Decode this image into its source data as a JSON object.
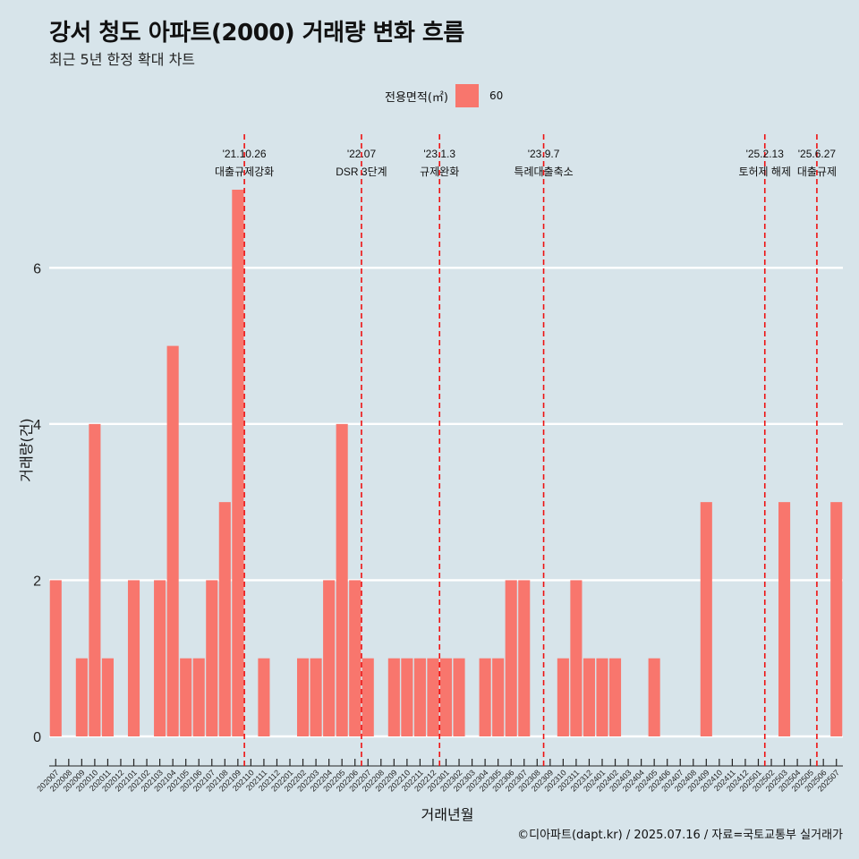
{
  "title": "강서 청도 아파트(2000) 거래량 변화 흐름",
  "subtitle": "최근 5년 한정 확대 차트",
  "legend": {
    "title": "전용면적(㎡)",
    "entry": "60",
    "color": "#f8766d"
  },
  "caption": "©디아파트(dapt.kr) / 2025.07.16 / 자료=국토교통부 실거래가",
  "chart_data": {
    "type": "bar",
    "xlabel": "거래년월",
    "ylabel": "거래량(건)",
    "ylim": [
      0,
      7
    ],
    "yticks": [
      0,
      2,
      4,
      6
    ],
    "bar_color": "#f8766d",
    "categories": [
      "202007",
      "202008",
      "202009",
      "202010",
      "202011",
      "202012",
      "202101",
      "202102",
      "202103",
      "202104",
      "202105",
      "202106",
      "202107",
      "202108",
      "202109",
      "202110",
      "202111",
      "202112",
      "202201",
      "202202",
      "202203",
      "202204",
      "202205",
      "202206",
      "202207",
      "202208",
      "202209",
      "202210",
      "202211",
      "202212",
      "202301",
      "202302",
      "202303",
      "202304",
      "202305",
      "202306",
      "202307",
      "202308",
      "202309",
      "202310",
      "202311",
      "202312",
      "202401",
      "202402",
      "202403",
      "202404",
      "202405",
      "202406",
      "202407",
      "202408",
      "202409",
      "202410",
      "202411",
      "202412",
      "202501",
      "202502",
      "202503",
      "202504",
      "202505",
      "202506",
      "202507"
    ],
    "series": [
      {
        "name": "60",
        "values": [
          2,
          0,
          1,
          4,
          1,
          0,
          2,
          0,
          2,
          5,
          1,
          1,
          2,
          3,
          7,
          0,
          1,
          0,
          0,
          1,
          1,
          2,
          4,
          2,
          1,
          0,
          1,
          1,
          1,
          1,
          1,
          1,
          0,
          1,
          1,
          2,
          2,
          0,
          0,
          1,
          2,
          1,
          1,
          1,
          0,
          0,
          1,
          0,
          0,
          0,
          3,
          0,
          0,
          0,
          0,
          0,
          3,
          0,
          0,
          0,
          3
        ]
      }
    ],
    "annotations": [
      {
        "date": "'21.10.26",
        "text": "대출규제강화",
        "at": 15.0
      },
      {
        "date": "'22.07",
        "text": "DSR 3단계",
        "at": 24.0
      },
      {
        "date": "'23.1.3",
        "text": "규제완화",
        "at": 30.0
      },
      {
        "date": "'23.9.7",
        "text": "특례대출축소",
        "at": 38.0
      },
      {
        "date": "'25.2.13",
        "text": "토허제 해제",
        "at": 55.0
      },
      {
        "date": "'25.6.27",
        "text": "대출규제",
        "at": 59.0
      }
    ]
  }
}
